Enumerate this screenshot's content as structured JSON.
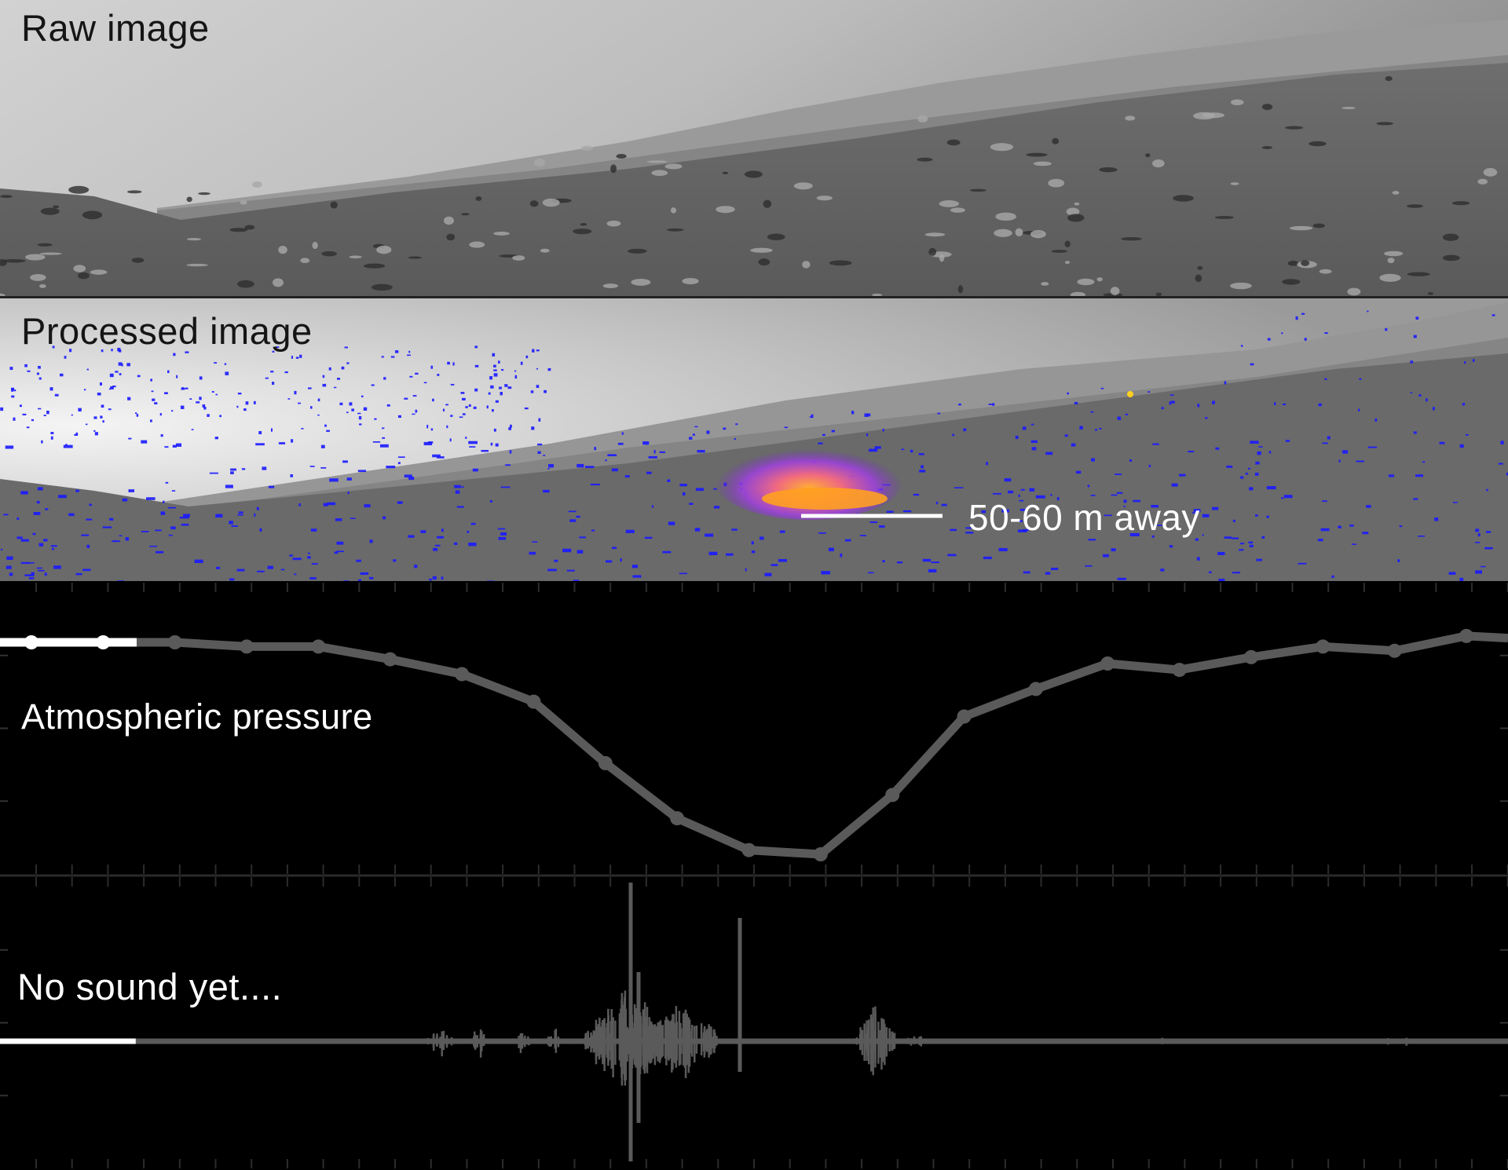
{
  "panels": {
    "raw": {
      "label": "Raw image"
    },
    "processed": {
      "label": "Processed image",
      "annotation": "50-60 m away"
    },
    "pressure": {
      "label": "Atmospheric pressure"
    },
    "sound": {
      "label": "No sound yet...."
    }
  },
  "colors": {
    "background": "#000000",
    "played": "#ffffff",
    "unplayed": "#5a5a5a",
    "overlay_blue": "#1a1aff",
    "dust_purple": "#a040e0",
    "dust_orange": "#ff9a20"
  },
  "chart_data": [
    {
      "type": "line",
      "title": "Atmospheric pressure",
      "xlabel": "",
      "ylabel": "",
      "x": [
        1,
        2,
        3,
        4,
        5,
        6,
        7,
        8,
        9,
        10,
        11,
        12,
        13,
        14,
        15,
        16,
        17,
        18,
        19,
        20,
        21
      ],
      "series": [
        {
          "values": [
            0,
            0,
            0,
            -0.02,
            -0.02,
            -0.08,
            -0.15,
            -0.28,
            -0.57,
            -0.83,
            -0.98,
            -1.0,
            -0.72,
            -0.35,
            -0.22,
            -0.1,
            -0.13,
            -0.07,
            -0.02,
            -0.04,
            0.03
          ]
        }
      ],
      "played_points": 2,
      "markers": true,
      "grid": false
    },
    {
      "type": "line",
      "title": "No sound yet....",
      "description_of_series": "",
      "played_fraction": 0.09,
      "grid": false
    }
  ]
}
